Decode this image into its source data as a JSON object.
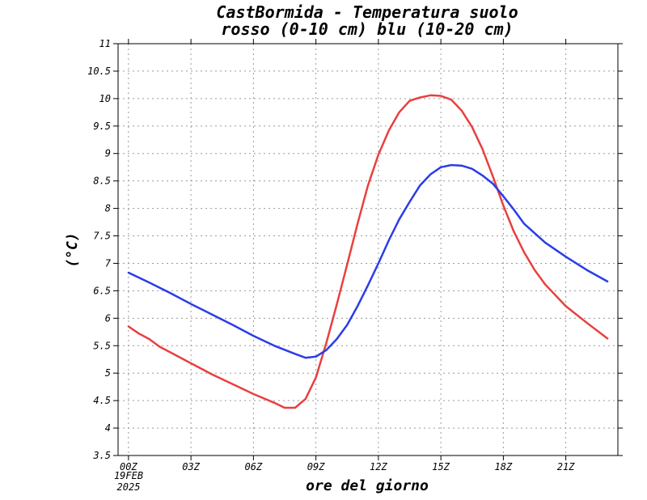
{
  "chart_data": {
    "type": "line",
    "title": "CastBormida - Temperatura suolo",
    "subtitle": "rosso (0-10 cm) blu (10-20 cm)",
    "xlabel": "ore del giorno",
    "ylabel": "(°C)",
    "x_date_lines": [
      "19FEB",
      "2025"
    ],
    "xlim": [
      -0.5,
      23.5
    ],
    "ylim": [
      3.5,
      11
    ],
    "yticks": [
      "3.5",
      "4",
      "4.5",
      "5",
      "5.5",
      "6",
      "6.5",
      "7",
      "7.5",
      "8",
      "8.5",
      "9",
      "9.5",
      "10",
      "10.5",
      "11"
    ],
    "xticks": [
      {
        "value": 0,
        "label": "00Z"
      },
      {
        "value": 3,
        "label": "03Z"
      },
      {
        "value": 6,
        "label": "06Z"
      },
      {
        "value": 9,
        "label": "09Z"
      },
      {
        "value": 12,
        "label": "12Z"
      },
      {
        "value": 15,
        "label": "15Z"
      },
      {
        "value": 18,
        "label": "18Z"
      },
      {
        "value": 21,
        "label": "21Z"
      }
    ],
    "grid": true,
    "series": [
      {
        "color": "#e8403f",
        "points": [
          [
            0,
            5.85
          ],
          [
            0.5,
            5.72
          ],
          [
            1,
            5.62
          ],
          [
            1.5,
            5.48
          ],
          [
            2,
            5.38
          ],
          [
            3,
            5.18
          ],
          [
            4,
            4.98
          ],
          [
            5,
            4.8
          ],
          [
            6,
            4.62
          ],
          [
            7,
            4.46
          ],
          [
            7.5,
            4.37
          ],
          [
            8,
            4.37
          ],
          [
            8.5,
            4.53
          ],
          [
            9,
            4.92
          ],
          [
            9.5,
            5.55
          ],
          [
            10,
            6.25
          ],
          [
            10.5,
            6.98
          ],
          [
            11,
            7.72
          ],
          [
            11.5,
            8.42
          ],
          [
            12,
            8.98
          ],
          [
            12.5,
            9.42
          ],
          [
            13,
            9.75
          ],
          [
            13.5,
            9.96
          ],
          [
            14,
            10.02
          ],
          [
            14.5,
            10.06
          ],
          [
            15,
            10.05
          ],
          [
            15.5,
            9.98
          ],
          [
            16,
            9.78
          ],
          [
            16.5,
            9.48
          ],
          [
            17,
            9.08
          ],
          [
            17.5,
            8.58
          ],
          [
            18,
            8.05
          ],
          [
            18.5,
            7.58
          ],
          [
            19,
            7.2
          ],
          [
            19.5,
            6.88
          ],
          [
            20,
            6.62
          ],
          [
            21,
            6.22
          ],
          [
            22,
            5.92
          ],
          [
            23,
            5.63
          ]
        ]
      },
      {
        "color": "#2a3de8",
        "points": [
          [
            0,
            6.83
          ],
          [
            1,
            6.65
          ],
          [
            2,
            6.46
          ],
          [
            3,
            6.26
          ],
          [
            4,
            6.07
          ],
          [
            5,
            5.88
          ],
          [
            6,
            5.68
          ],
          [
            7,
            5.5
          ],
          [
            8,
            5.35
          ],
          [
            8.5,
            5.28
          ],
          [
            9,
            5.3
          ],
          [
            9.5,
            5.42
          ],
          [
            10,
            5.62
          ],
          [
            10.5,
            5.88
          ],
          [
            11,
            6.22
          ],
          [
            11.5,
            6.6
          ],
          [
            12,
            7.0
          ],
          [
            12.5,
            7.42
          ],
          [
            13,
            7.8
          ],
          [
            13.5,
            8.12
          ],
          [
            14,
            8.42
          ],
          [
            14.5,
            8.62
          ],
          [
            15,
            8.75
          ],
          [
            15.5,
            8.79
          ],
          [
            16,
            8.78
          ],
          [
            16.5,
            8.72
          ],
          [
            17,
            8.6
          ],
          [
            17.5,
            8.45
          ],
          [
            18,
            8.22
          ],
          [
            18.5,
            7.98
          ],
          [
            19,
            7.72
          ],
          [
            20,
            7.38
          ],
          [
            21,
            7.12
          ],
          [
            22,
            6.88
          ],
          [
            23,
            6.67
          ]
        ]
      }
    ]
  }
}
